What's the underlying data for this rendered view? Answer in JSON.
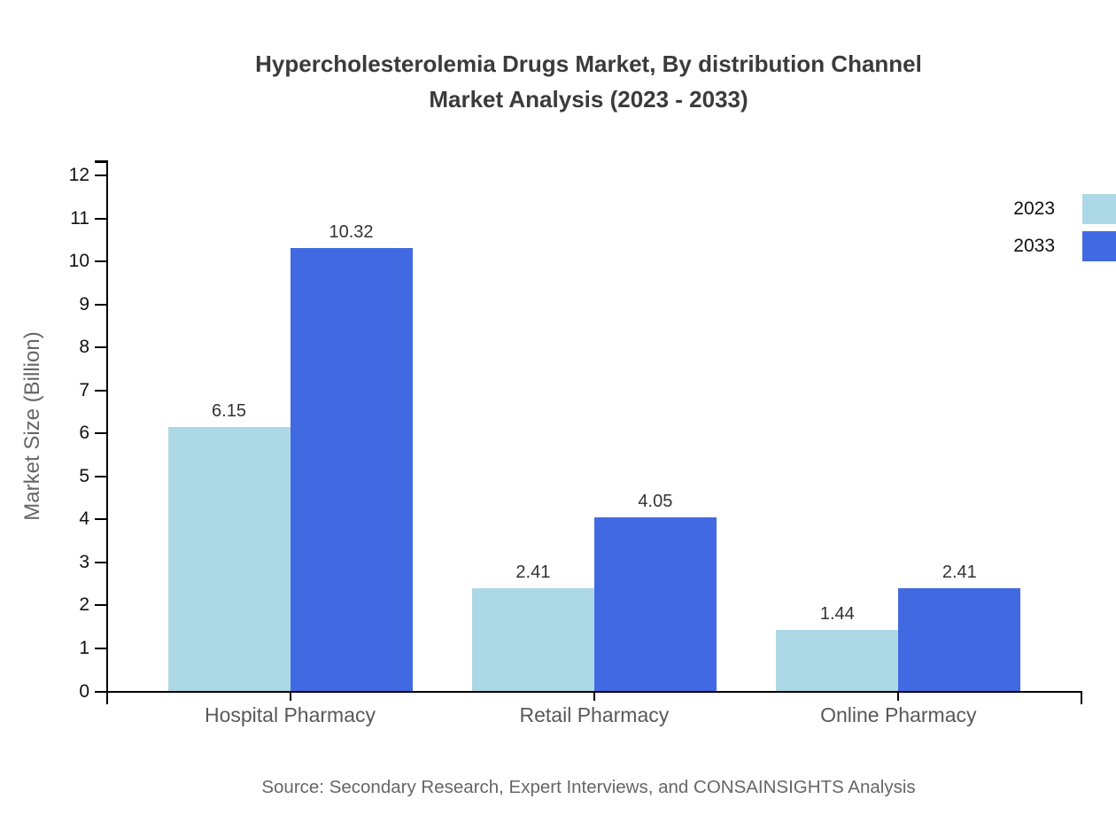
{
  "title": {
    "line1": "Hypercholesterolemia Drugs Market, By distribution Channel",
    "line2": "Market Analysis (2023 - 2033)"
  },
  "source": "Source: Secondary Research, Expert Interviews, and CONSAINSIGHTS Analysis",
  "colors": {
    "series_2023": "#ADD8E6",
    "series_2033": "#4169E1",
    "axis": "#000000",
    "title_text": "#3b3b3b",
    "value_text": "#333333",
    "muted_text": "#666666"
  },
  "chart_data": {
    "type": "bar",
    "title": "Hypercholesterolemia Drugs Market, By distribution Channel Market Analysis (2023 - 2033)",
    "categories": [
      "Hospital Pharmacy",
      "Retail Pharmacy",
      "Online Pharmacy"
    ],
    "series": [
      {
        "name": "2023",
        "color": "#ADD8E6",
        "values": [
          6.15,
          2.41,
          1.44
        ]
      },
      {
        "name": "2033",
        "color": "#4169E1",
        "values": [
          10.32,
          4.05,
          2.41
        ]
      }
    ],
    "xlabel": "",
    "ylabel": "Market Size (Billion)",
    "yticks": [
      0,
      1,
      2,
      3,
      4,
      5,
      6,
      7,
      8,
      9,
      10,
      11,
      12
    ],
    "ylim": [
      0,
      12
    ],
    "grid": false,
    "legend_position": "top-right",
    "value_labels": true
  }
}
